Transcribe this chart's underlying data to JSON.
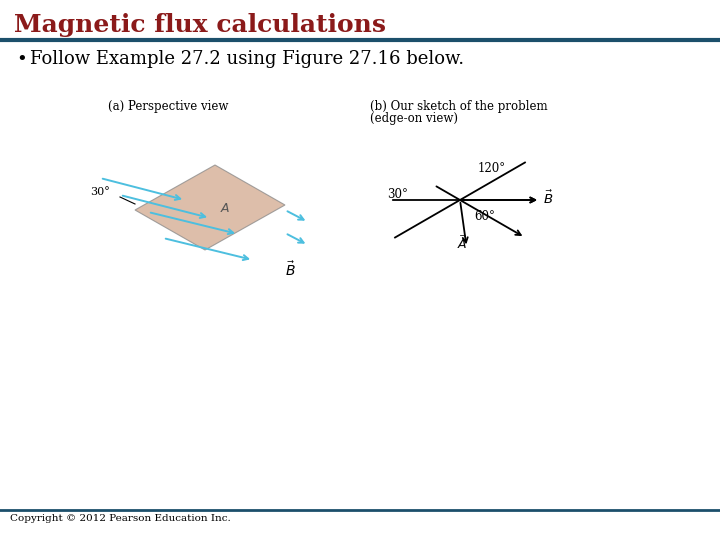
{
  "title": "Magnetic flux calculations",
  "title_color": "#8B1A1A",
  "title_fontsize": 18,
  "bullet_text": "Follow Example 27.2 using Figure 27.16 below.",
  "bullet_fontsize": 13,
  "divider_color": "#1C4F6B",
  "divider_linewidth": 3,
  "background_color": "#FFFFFF",
  "copyright_text": "Copyright © 2012 Pearson Education Inc.",
  "copyright_fontsize": 7.5,
  "label_a": "(a) Perspective view",
  "label_b_line1": "(b) Our sketch of the problem",
  "label_b_line2": "(edge-on view)",
  "parallelogram_color": "#D2A98E",
  "arrow_color_B": "#4DBFDF",
  "angle_30": "30°",
  "angle_60": "60°",
  "angle_120": "120°"
}
